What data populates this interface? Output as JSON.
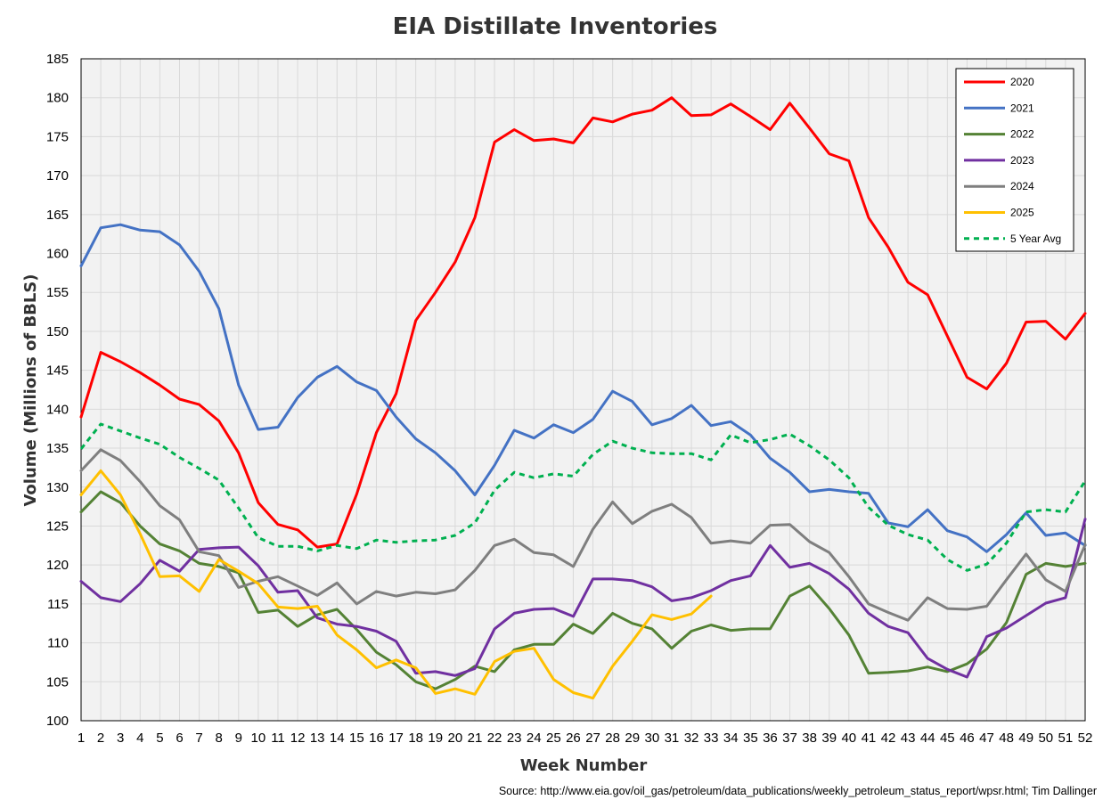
{
  "chart_data": {
    "type": "line",
    "title": "EIA Distillate Inventories",
    "xlabel": "Week Number",
    "ylabel": "Volume (Millions of BBLS)",
    "source": "Source: http://www.eia.gov/oil_gas/petroleum/data_publications/weekly_petroleum_status_report/wpsr.html; Tim Dallinger",
    "xlim": [
      1,
      52
    ],
    "ylim": [
      100,
      185
    ],
    "yticks": [
      100,
      105,
      110,
      115,
      120,
      125,
      130,
      135,
      140,
      145,
      150,
      155,
      160,
      165,
      170,
      175,
      180,
      185
    ],
    "x": [
      1,
      2,
      3,
      4,
      5,
      6,
      7,
      8,
      9,
      10,
      11,
      12,
      13,
      14,
      15,
      16,
      17,
      18,
      19,
      20,
      21,
      22,
      23,
      24,
      25,
      26,
      27,
      28,
      29,
      30,
      31,
      32,
      33,
      34,
      35,
      36,
      37,
      38,
      39,
      40,
      41,
      42,
      43,
      44,
      45,
      46,
      47,
      48,
      49,
      50,
      51,
      52
    ],
    "grid": true,
    "legend_position": "top-right",
    "series": [
      {
        "name": "2020",
        "color": "#ff0000",
        "dashed": false,
        "values": [
          139.0,
          147.3,
          146.1,
          144.7,
          143.1,
          141.3,
          140.6,
          138.5,
          134.4,
          128.0,
          125.2,
          124.5,
          122.3,
          122.7,
          129.1,
          137.0,
          142.0,
          151.4,
          155.0,
          158.9,
          164.6,
          174.3,
          175.9,
          174.5,
          174.7,
          174.2,
          177.4,
          176.9,
          177.9,
          178.4,
          180.0,
          177.7,
          177.8,
          179.2,
          177.6,
          175.9,
          179.3,
          176.1,
          172.8,
          171.9,
          164.6,
          160.8,
          156.3,
          154.7,
          149.4,
          144.1,
          142.6,
          145.9,
          151.2,
          151.3,
          149.0,
          152.3
        ]
      },
      {
        "name": "2021",
        "color": "#4472c4",
        "dashed": false,
        "values": [
          158.4,
          163.3,
          163.7,
          163.0,
          162.8,
          161.1,
          157.7,
          152.9,
          143.1,
          137.4,
          137.7,
          141.5,
          144.1,
          145.5,
          143.5,
          142.4,
          139.0,
          136.2,
          134.4,
          132.1,
          129.0,
          132.8,
          137.3,
          136.3,
          138.0,
          137.0,
          138.7,
          142.3,
          141.0,
          138.0,
          138.8,
          140.5,
          137.9,
          138.4,
          136.7,
          133.7,
          131.9,
          129.4,
          129.7,
          129.4,
          129.2,
          125.4,
          124.9,
          127.1,
          124.4,
          123.6,
          121.7,
          123.9,
          126.7,
          123.8,
          124.1,
          122.5
        ]
      },
      {
        "name": "2022",
        "color": "#548235",
        "dashed": false,
        "values": [
          126.8,
          129.4,
          128.0,
          125.0,
          122.7,
          121.8,
          120.2,
          119.8,
          119.0,
          113.9,
          114.2,
          112.1,
          113.6,
          114.3,
          111.7,
          108.8,
          107.2,
          105.0,
          104.1,
          105.3,
          107.0,
          106.3,
          109.1,
          109.8,
          109.8,
          112.4,
          111.2,
          113.8,
          112.5,
          111.8,
          109.3,
          111.5,
          112.3,
          111.6,
          111.8,
          111.8,
          116.0,
          117.3,
          114.4,
          111.0,
          106.1,
          106.2,
          106.4,
          106.9,
          106.3,
          107.3,
          109.2,
          112.6,
          118.8,
          120.2,
          119.8,
          120.2
        ]
      },
      {
        "name": "2023",
        "color": "#7030a0",
        "dashed": false,
        "values": [
          117.9,
          115.8,
          115.3,
          117.6,
          120.6,
          119.2,
          122.0,
          122.2,
          122.3,
          119.9,
          116.5,
          116.7,
          113.2,
          112.4,
          112.1,
          111.5,
          110.2,
          106.1,
          106.3,
          105.8,
          106.7,
          111.8,
          113.8,
          114.3,
          114.4,
          113.4,
          118.2,
          118.2,
          118.0,
          117.2,
          115.4,
          115.8,
          116.7,
          118.0,
          118.6,
          122.5,
          119.7,
          120.2,
          118.9,
          116.9,
          113.8,
          112.1,
          111.3,
          108.0,
          106.6,
          105.6,
          110.8,
          111.9,
          113.5,
          115.1,
          115.8,
          125.9
        ]
      },
      {
        "name": "2024",
        "color": "#7f7f7f",
        "dashed": false,
        "values": [
          132.1,
          134.8,
          133.4,
          130.7,
          127.6,
          125.8,
          121.7,
          121.2,
          117.1,
          117.9,
          118.5,
          117.3,
          116.1,
          117.7,
          115.0,
          116.6,
          116.0,
          116.5,
          116.3,
          116.8,
          119.3,
          122.5,
          123.3,
          121.6,
          121.3,
          119.8,
          124.6,
          128.1,
          125.3,
          126.9,
          127.8,
          126.1,
          122.8,
          123.1,
          122.8,
          125.1,
          125.2,
          123.0,
          121.6,
          118.5,
          115.0,
          113.9,
          112.9,
          115.8,
          114.4,
          114.3,
          114.7,
          118.1,
          121.4,
          118.1,
          116.6,
          122.6
        ]
      },
      {
        "name": "2025",
        "color": "#ffc000",
        "dashed": false,
        "values": [
          129.0,
          132.1,
          129.0,
          124.0,
          118.5,
          118.6,
          116.6,
          120.7,
          119.2,
          117.6,
          114.6,
          114.4,
          114.7,
          111.0,
          109.1,
          106.8,
          107.8,
          106.8,
          103.5,
          104.1,
          103.4,
          107.6,
          108.9,
          109.3,
          105.3,
          103.6,
          102.9,
          107.0,
          110.2,
          113.6,
          113.0,
          113.7,
          116.0,
          null,
          null,
          null,
          null,
          null,
          null,
          null,
          null,
          null,
          null,
          null,
          null,
          null,
          null,
          null,
          null,
          null,
          null,
          null
        ]
      },
      {
        "name": "5 Year Avg",
        "color": "#00b050",
        "dashed": true,
        "values": [
          134.9,
          138.1,
          137.2,
          136.3,
          135.5,
          133.8,
          132.4,
          130.9,
          127.3,
          123.5,
          122.4,
          122.4,
          121.8,
          122.5,
          122.1,
          123.2,
          122.9,
          123.1,
          123.2,
          123.8,
          125.4,
          129.6,
          131.9,
          131.2,
          131.7,
          131.4,
          134.2,
          135.9,
          135.0,
          134.4,
          134.3,
          134.3,
          133.5,
          136.7,
          135.7,
          136.1,
          136.8,
          135.3,
          133.5,
          131.2,
          127.4,
          125.1,
          123.9,
          123.2,
          120.7,
          119.3,
          120.1,
          122.8,
          126.8,
          127.1,
          126.8,
          130.8
        ]
      }
    ]
  }
}
